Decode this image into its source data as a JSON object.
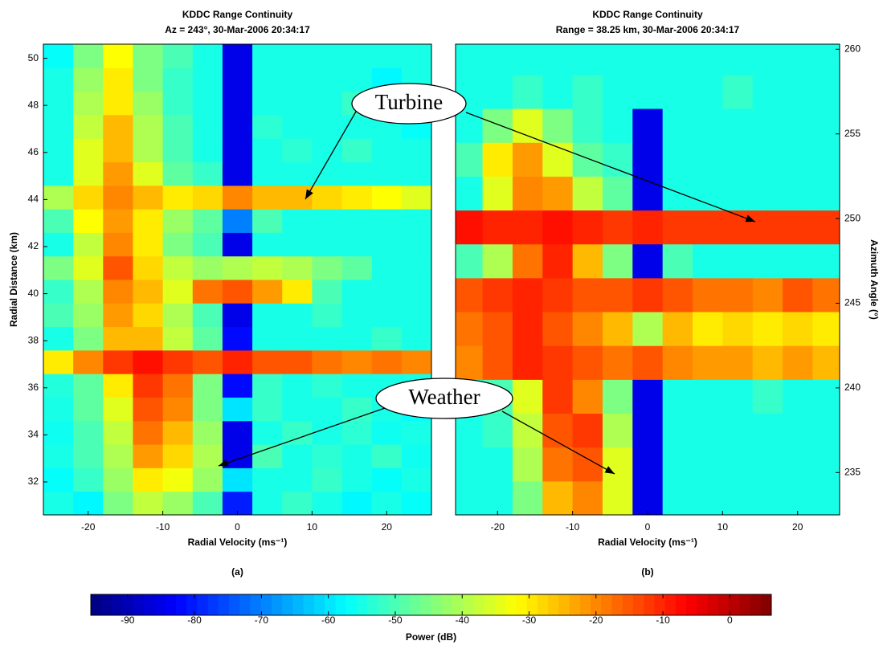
{
  "chart_data": [
    {
      "type": "heatmap",
      "title": "KDDC Range Continuity",
      "subtitle": "Az = 243°, 30-Mar-2006 20:34:17",
      "x_label": "Radial Velocity (ms⁻¹)",
      "y_label": "Radial Distance (km)",
      "caption": "(a)",
      "colormap": "jet",
      "y_axis_side": "left",
      "xlim": [
        -26,
        26
      ],
      "ylim": [
        30.6,
        50.6
      ],
      "xticks": [
        -20,
        -10,
        0,
        10,
        20
      ],
      "yticks": [
        32,
        34,
        36,
        38,
        40,
        42,
        44,
        46,
        48,
        50
      ],
      "x_bins": [
        -26,
        -22,
        -18,
        -14,
        -10,
        -6,
        -2,
        2,
        6,
        10,
        14,
        18,
        22,
        26
      ],
      "y_bins": [
        30.6,
        31.6,
        32.6,
        33.6,
        34.6,
        35.6,
        36.6,
        37.6,
        38.6,
        39.6,
        40.6,
        41.6,
        42.6,
        43.6,
        44.6,
        45.6,
        46.6,
        47.6,
        48.6,
        49.6,
        50.6
      ],
      "z": [
        [
          -55,
          -58,
          -45,
          -38,
          -42,
          -50,
          -80,
          -55,
          -52,
          -55,
          -58,
          -55,
          -57
        ],
        [
          -57,
          -52,
          -42,
          -30,
          -33,
          -42,
          -60,
          -55,
          -55,
          -52,
          -55,
          -57,
          -55
        ],
        [
          -55,
          -50,
          -40,
          -22,
          -28,
          -40,
          -85,
          -50,
          -55,
          -53,
          -55,
          -52,
          -56
        ],
        [
          -56,
          -50,
          -38,
          -18,
          -25,
          -42,
          -85,
          -55,
          -52,
          -55,
          -53,
          -56,
          -55
        ],
        [
          -55,
          -48,
          -35,
          -15,
          -20,
          -45,
          -60,
          -52,
          -55,
          -55,
          -52,
          -55,
          -57
        ],
        [
          -54,
          -48,
          -30,
          -12,
          -18,
          -45,
          -82,
          -52,
          -55,
          -53,
          -55,
          -55,
          -55
        ],
        [
          -30,
          -20,
          -12,
          -8,
          -12,
          -15,
          -10,
          -15,
          -15,
          -18,
          -20,
          -18,
          -20
        ],
        [
          -55,
          -45,
          -25,
          -25,
          -38,
          -48,
          -82,
          -55,
          -55,
          -55,
          -55,
          -52,
          -55
        ],
        [
          -50,
          -42,
          -22,
          -28,
          -40,
          -50,
          -85,
          -55,
          -55,
          -52,
          -55,
          -55,
          -55
        ],
        [
          -52,
          -40,
          -20,
          -25,
          -35,
          -18,
          -15,
          -22,
          -30,
          -50,
          -55,
          -55,
          -55
        ],
        [
          -45,
          -35,
          -15,
          -28,
          -38,
          -42,
          -40,
          -38,
          -40,
          -45,
          -48,
          -55,
          -55
        ],
        [
          -55,
          -38,
          -20,
          -30,
          -45,
          -50,
          -85,
          -55,
          -55,
          -55,
          -55,
          -55,
          -55
        ],
        [
          -50,
          -32,
          -22,
          -30,
          -42,
          -48,
          -70,
          -50,
          -55,
          -55,
          -55,
          -55,
          -55
        ],
        [
          -40,
          -28,
          -20,
          -25,
          -30,
          -28,
          -20,
          -25,
          -25,
          -28,
          -30,
          -32,
          -35
        ],
        [
          -55,
          -35,
          -22,
          -35,
          -48,
          -52,
          -85,
          -55,
          -55,
          -55,
          -55,
          -55,
          -55
        ],
        [
          -55,
          -35,
          -25,
          -40,
          -50,
          -55,
          -85,
          -55,
          -53,
          -55,
          -52,
          -55,
          -55
        ],
        [
          -55,
          -38,
          -25,
          -40,
          -50,
          -55,
          -85,
          -53,
          -55,
          -55,
          -55,
          -55,
          -57
        ],
        [
          -55,
          -40,
          -30,
          -42,
          -52,
          -55,
          -85,
          -55,
          -55,
          -55,
          -52,
          -55,
          -55
        ],
        [
          -55,
          -42,
          -30,
          -45,
          -52,
          -55,
          -85,
          -55,
          -55,
          -55,
          -55,
          -58,
          -55
        ],
        [
          -57,
          -45,
          -32,
          -45,
          -50,
          -55,
          -85,
          -55,
          -55,
          -55,
          -55,
          -55,
          -55
        ]
      ]
    },
    {
      "type": "heatmap",
      "title": "KDDC Range Continuity",
      "subtitle": "Range = 38.25 km, 30-Mar-2006 20:34:17",
      "x_label": "Radial Velocity (ms⁻¹)",
      "y_label": "Azimuth Angle (°)",
      "caption": "(b)",
      "colormap": "jet",
      "y_axis_side": "right",
      "xlim": [
        -25.6,
        25.6
      ],
      "ylim": [
        232.5,
        260.3
      ],
      "xticks": [
        -20,
        -10,
        0,
        10,
        20
      ],
      "yticks": [
        235,
        240,
        245,
        250,
        255,
        260
      ],
      "x_bins": [
        -26,
        -22,
        -18,
        -14,
        -10,
        -6,
        -2,
        2,
        6,
        10,
        14,
        18,
        22,
        26
      ],
      "y_bins": [
        232.5,
        234.5,
        236.5,
        238.5,
        240.5,
        242.5,
        244.5,
        246.5,
        248.5,
        250.5,
        252.5,
        254.5,
        256.5,
        258.5,
        260.3
      ],
      "z": [
        [
          -55,
          -55,
          -45,
          -25,
          -20,
          -35,
          -85,
          -55,
          -55,
          -55,
          -55,
          -55,
          -55
        ],
        [
          -55,
          -55,
          -40,
          -18,
          -15,
          -35,
          -85,
          -55,
          -55,
          -55,
          -55,
          -55,
          -55
        ],
        [
          -55,
          -52,
          -38,
          -15,
          -12,
          -40,
          -85,
          -55,
          -55,
          -55,
          -55,
          -55,
          -55
        ],
        [
          -55,
          -50,
          -35,
          -12,
          -20,
          -45,
          -85,
          -55,
          -55,
          -55,
          -52,
          -55,
          -55
        ],
        [
          -20,
          -15,
          -10,
          -12,
          -15,
          -18,
          -15,
          -20,
          -22,
          -22,
          -25,
          -22,
          -25
        ],
        [
          -18,
          -15,
          -10,
          -15,
          -20,
          -25,
          -40,
          -25,
          -30,
          -28,
          -30,
          -28,
          -30
        ],
        [
          -15,
          -12,
          -10,
          -12,
          -15,
          -15,
          -12,
          -15,
          -18,
          -18,
          -20,
          -15,
          -18
        ],
        [
          -50,
          -40,
          -18,
          -10,
          -25,
          -45,
          -85,
          -50,
          -55,
          -55,
          -55,
          -55,
          -55
        ],
        [
          -8,
          -10,
          -10,
          -8,
          -10,
          -12,
          -10,
          -12,
          -12,
          -12,
          -12,
          -12,
          -12
        ],
        [
          -55,
          -35,
          -20,
          -22,
          -38,
          -48,
          -85,
          -55,
          -55,
          -55,
          -55,
          -55,
          -55
        ],
        [
          -50,
          -30,
          -22,
          -35,
          -48,
          -52,
          -85,
          -55,
          -55,
          -55,
          -55,
          -55,
          -55
        ],
        [
          -55,
          -45,
          -35,
          -45,
          -52,
          -55,
          -85,
          -55,
          -55,
          -55,
          -55,
          -55,
          -55
        ],
        [
          -55,
          -55,
          -52,
          -55,
          -52,
          -55,
          -55,
          -55,
          -55,
          -52,
          -55,
          -55,
          -55
        ],
        [
          -55,
          -55,
          -55,
          -55,
          -55,
          -55,
          -55,
          -55,
          -55,
          -55,
          -55,
          -55,
          -55
        ]
      ]
    },
    {
      "type": "colorbar",
      "x_label": "Power (dB)",
      "colormap": "jet",
      "xlim": [
        -95.5,
        6.2
      ],
      "xticks": [
        -90,
        -80,
        -70,
        -60,
        -50,
        -40,
        -30,
        -20,
        -10,
        0
      ]
    }
  ],
  "annotations": [
    "Turbine",
    "Weather"
  ]
}
